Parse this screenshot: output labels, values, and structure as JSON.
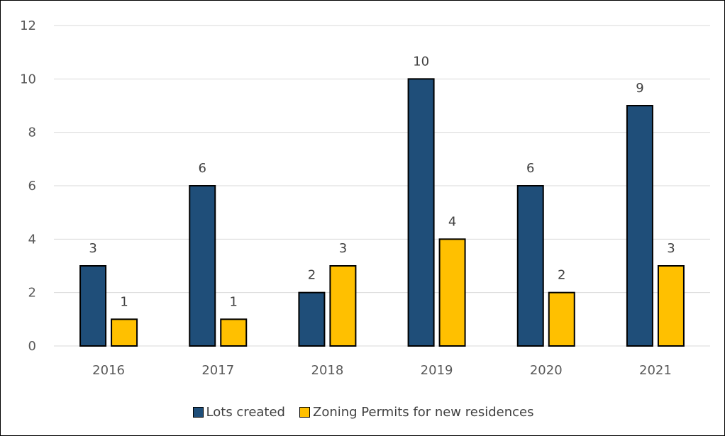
{
  "chart_data": {
    "type": "bar",
    "title": "",
    "xlabel": "",
    "ylabel": "",
    "categories": [
      "2016",
      "2017",
      "2018",
      "2019",
      "2020",
      "2021"
    ],
    "series": [
      {
        "name": "Lots created",
        "values": [
          3,
          6,
          2,
          10,
          6,
          9
        ],
        "color": "#1f4e79"
      },
      {
        "name": "Zoning Permits for new residences",
        "values": [
          1,
          1,
          3,
          4,
          2,
          3
        ],
        "color": "#ffc000"
      }
    ],
    "ylim": [
      0,
      12
    ],
    "yticks": [
      "0",
      "2",
      "4",
      "6",
      "8",
      "10",
      "12"
    ],
    "grid": true,
    "legend_position": "bottom",
    "data_labels": true
  }
}
